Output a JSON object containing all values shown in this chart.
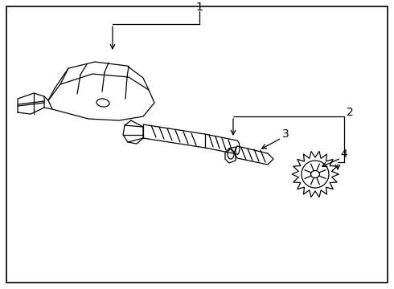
{
  "bg_color": "#ffffff",
  "border_color": "#000000",
  "line_color": "#000000",
  "label_color": "#000000",
  "figsize": [
    4.9,
    3.6
  ],
  "dpi": 100
}
